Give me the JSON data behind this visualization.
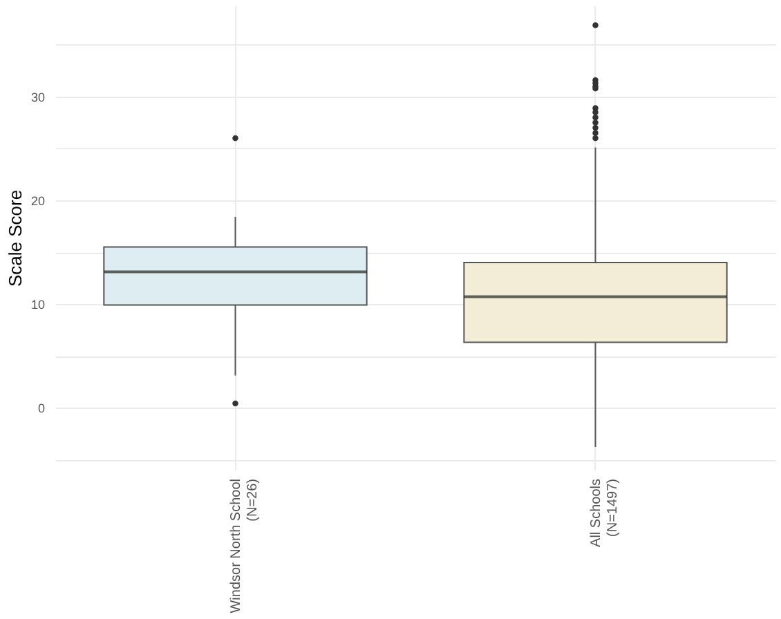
{
  "chart_data": {
    "type": "box",
    "ylabel": "Scale Score",
    "categories": [
      "Windsor North School\n(N=26)",
      "All Schools\n(N=1497)"
    ],
    "boxes": [
      {
        "low": 3.1,
        "q1": 9.9,
        "median": 13.1,
        "q3": 15.5,
        "high": 18.4,
        "outliers": [
          26.0,
          0.4
        ]
      },
      {
        "low": -3.8,
        "q1": 6.3,
        "median": 10.7,
        "q3": 14.0,
        "high": 25.1,
        "outliers": [
          26.0,
          26.5,
          27.0,
          27.5,
          28.0,
          28.5,
          28.9,
          30.8,
          31.0,
          31.3,
          31.6,
          36.9
        ]
      }
    ],
    "colors": [
      "#deedf2",
      "#f3ecd6"
    ],
    "ylim": [
      -6,
      38.8
    ],
    "yticks": [
      {
        "value": -5,
        "label": null
      },
      0,
      {
        "value": 5,
        "label": null
      },
      10,
      {
        "value": 15,
        "label": null
      },
      20,
      {
        "value": 25,
        "label": null
      },
      30,
      {
        "value": 35,
        "label": null
      }
    ],
    "grid": true
  }
}
